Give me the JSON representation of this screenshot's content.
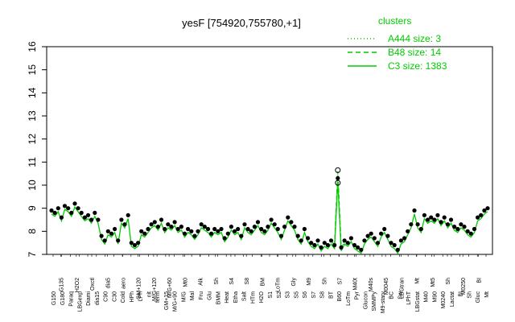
{
  "chart_data": {
    "type": "line",
    "title": "yesF [754920,755780,+1]",
    "xlabel": "",
    "ylabel": "",
    "ylim": [
      7,
      16
    ],
    "y_ticks": [
      7,
      8,
      9,
      10,
      11,
      12,
      13,
      14,
      15,
      16
    ],
    "grid": false,
    "legend": {
      "title": "clusters",
      "placement": "top-right",
      "color": "#00cc00",
      "entries": [
        {
          "label": "A444 size: 3",
          "style": "dotted"
        },
        {
          "label": "B48 size: 14",
          "style": "dashed"
        },
        {
          "label": "C3 size: 1383",
          "style": "solid"
        }
      ]
    },
    "tick_labels_row1": [
      "G150",
      "G180",
      "Paraq",
      "LBGexp",
      "Diami",
      "dia15",
      "C90",
      "C30",
      "Cold",
      "HPh",
      "LPh",
      "nit",
      "ferm",
      "GM+15",
      "M/G+90",
      "M/G",
      "Mal",
      "Fru",
      "Glu",
      "BMM",
      "Heat",
      "Etha",
      "Salt",
      "HTm",
      "H2O",
      "S1",
      "S2",
      "S3",
      "S5",
      "S6",
      "S7",
      "S8",
      "BT",
      "B60",
      "LoTm",
      "Pyr",
      "Glucon",
      "SMMPy",
      "M9-starv",
      "BC",
      "Sw",
      "LPhT",
      "LBGstat",
      "M40",
      "M90",
      "M0240",
      "Lactat",
      "BI",
      "Sh",
      "Gluc",
      "Mt"
    ],
    "tick_labels_row2": [
      "G135",
      "H2O2",
      "Oxctl",
      "dia5",
      "aero",
      "GM+120",
      "M/G+120",
      "M/G+60",
      "Mt0",
      "Alk",
      "Sh",
      "S4",
      "S8",
      "BM",
      "LoTm",
      "Gly",
      "M9",
      "Sh",
      "S7",
      "M40t",
      "M40s",
      "M0045",
      "LBGtran",
      "Mt",
      "Mt5",
      "Sh",
      "M0250",
      "BI"
    ],
    "point_color": "#000000",
    "line_color": "#00cc00",
    "series": [
      {
        "values": [
          8.9,
          8.8,
          9.0,
          8.6,
          9.1,
          9.0,
          8.8,
          9.2,
          9.0,
          8.8,
          8.6,
          8.7,
          8.5,
          8.8,
          8.5,
          7.8,
          7.6,
          8.0,
          7.9,
          8.1,
          7.6,
          8.5,
          8.3,
          8.7,
          7.5,
          7.4,
          7.5,
          8.0,
          7.9,
          8.1,
          8.3,
          8.4,
          8.2,
          8.5,
          8.1,
          8.3,
          8.2,
          8.4,
          8.1,
          8.2,
          7.9,
          8.1,
          8.0,
          7.8,
          8.0,
          8.3,
          8.2,
          8.1,
          7.9,
          8.1,
          8.0,
          8.1,
          7.7,
          7.9,
          8.2,
          8.0,
          8.1,
          7.8,
          8.3,
          8.1,
          8.0,
          8.2,
          8.4,
          8.1,
          8.0,
          8.2,
          8.5,
          8.3,
          8.1,
          7.8,
          8.2,
          8.6,
          8.4,
          8.2,
          7.8,
          7.6,
          8.1,
          7.7,
          7.5,
          7.4,
          7.6,
          7.3,
          7.5,
          7.4,
          7.6,
          7.4,
          10.3,
          7.3,
          7.6,
          7.5,
          7.7,
          7.4,
          7.3,
          7.2,
          7.6,
          7.8,
          7.9,
          7.7,
          7.5,
          7.9,
          8.1,
          7.8,
          7.5,
          7.4,
          7.2,
          7.6,
          7.7,
          8.0,
          8.3,
          8.9,
          8.3,
          8.1,
          8.7,
          8.5,
          8.6,
          8.5,
          8.7,
          8.4,
          8.6,
          8.3,
          8.5,
          8.2,
          8.1,
          8.3,
          8.2,
          8.0,
          7.9,
          8.1,
          8.6,
          8.7,
          8.9,
          9.0
        ]
      }
    ]
  }
}
